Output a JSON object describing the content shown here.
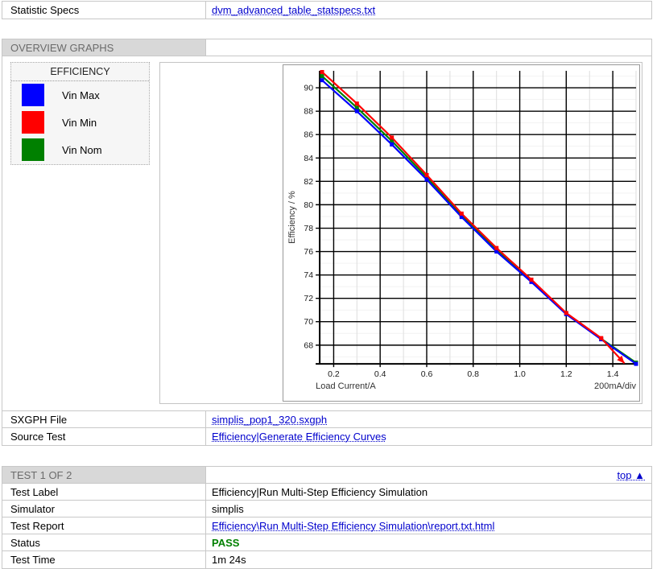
{
  "colors": {
    "link": "#0000cd",
    "pass_green": "#008000",
    "section_header_bg": "#d8d8d8",
    "section_header_text": "#6b6b6b",
    "series_blue": "#0000ff",
    "series_red": "#ff0000",
    "series_green": "#008000"
  },
  "spec_table": {
    "rows": [
      {
        "label": "Statistic Specs",
        "value": "dvm_advanced_table_statspecs.txt"
      }
    ]
  },
  "overview_section": {
    "title": "OVERVIEW GRAPHS",
    "legend": {
      "title": "EFFICIENCY",
      "items": [
        {
          "label": "Vin Max",
          "color": "#0000ff"
        },
        {
          "label": "Vin Min",
          "color": "#ff0000"
        },
        {
          "label": "Vin Nom",
          "color": "#008000"
        }
      ]
    },
    "file_rows": [
      {
        "label": "SXGPH File",
        "value": "simplis_pop1_320.sxgph"
      },
      {
        "label": "Source Test",
        "value": "Efficiency|Generate Efficiency Curves"
      }
    ]
  },
  "chart_data": {
    "type": "line",
    "title": "",
    "xlabel": "Load Current/A",
    "ylabel": "Efficiency / %",
    "x_scale_note": "200mA/div",
    "xlim": [
      0.14,
      1.5
    ],
    "ylim": [
      66.4,
      91.45
    ],
    "x_major_ticks": [
      0.2,
      0.4,
      0.6,
      0.8,
      1.0,
      1.2,
      1.4
    ],
    "x_minor_ticks": [
      0.3,
      0.5,
      0.7,
      0.9,
      1.1,
      1.3,
      1.5
    ],
    "y_major_ticks": [
      68,
      70,
      72,
      74,
      76,
      78,
      80,
      82,
      84,
      86,
      88,
      90
    ],
    "y_minor_ticks": [
      67,
      69,
      71,
      73,
      75,
      77,
      79,
      81,
      83,
      85,
      87,
      89,
      91
    ],
    "grid": true,
    "legend_position": "outside-left",
    "series": [
      {
        "name": "Vin Nom",
        "color": "#008000",
        "marker": "square",
        "x": [
          0.15,
          0.3,
          0.45,
          0.6,
          0.75,
          0.9,
          1.05,
          1.2,
          1.35,
          1.5
        ],
        "y": [
          91.0,
          88.3,
          85.45,
          82.35,
          79.1,
          76.15,
          73.5,
          70.7,
          68.55,
          66.5
        ]
      },
      {
        "name": "Vin Max",
        "color": "#0000ff",
        "marker": "square",
        "x": [
          0.15,
          0.3,
          0.45,
          0.6,
          0.75,
          0.9,
          1.05,
          1.2,
          1.35,
          1.5
        ],
        "y": [
          90.65,
          88.0,
          85.15,
          82.15,
          78.95,
          76.0,
          73.4,
          70.65,
          68.5,
          66.4
        ]
      },
      {
        "name": "Vin Min",
        "color": "#ff0000",
        "marker": "square",
        "end_marker": "arrow",
        "x": [
          0.15,
          0.3,
          0.45,
          0.6,
          0.75,
          0.9,
          1.05,
          1.2,
          1.35,
          1.45
        ],
        "y": [
          91.35,
          88.65,
          85.75,
          82.55,
          79.25,
          76.3,
          73.6,
          70.75,
          68.6,
          66.45
        ]
      }
    ]
  },
  "test_section": {
    "title": "TEST 1 OF 2",
    "top_link_label": "top ▲",
    "rows": {
      "test_label": {
        "label": "Test Label",
        "value": "Efficiency|Run Multi-Step Efficiency Simulation"
      },
      "simulator": {
        "label": "Simulator",
        "value": "simplis"
      },
      "test_report": {
        "label": "Test Report",
        "value": "Efficiency\\Run Multi-Step Efficiency Simulation\\report.txt.html"
      },
      "status": {
        "label": "Status",
        "value": "PASS"
      },
      "test_time": {
        "label": "Test Time",
        "value": "1m 24s"
      }
    }
  }
}
